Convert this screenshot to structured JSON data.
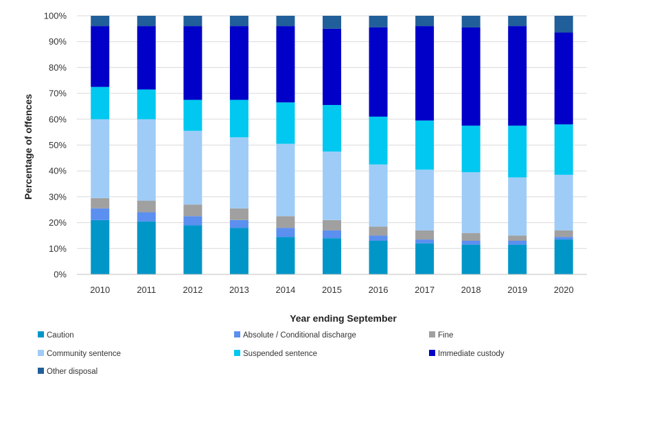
{
  "chart_data": {
    "type": "bar",
    "stacked": true,
    "title": "",
    "xlabel": "Year ending September",
    "ylabel": "Percentage of offences",
    "ylim": [
      0,
      100
    ],
    "yticks": [
      "0%",
      "10%",
      "20%",
      "30%",
      "40%",
      "50%",
      "60%",
      "70%",
      "80%",
      "90%",
      "100%"
    ],
    "categories": [
      "2010",
      "2011",
      "2012",
      "2013",
      "2014",
      "2015",
      "2016",
      "2017",
      "2018",
      "2019",
      "2020"
    ],
    "grid": true,
    "legend_position": "bottom",
    "series": [
      {
        "name": "Caution",
        "color": "#0096C8",
        "values": [
          21,
          20.5,
          19,
          18,
          14.5,
          14,
          13,
          12,
          11.5,
          11.5,
          13.5
        ]
      },
      {
        "name": "Absolute / Conditional discharge",
        "color": "#5B8FF0",
        "values": [
          4.5,
          3.5,
          3.5,
          3,
          3.5,
          3,
          2,
          1.5,
          1.5,
          1.5,
          1
        ]
      },
      {
        "name": "Fine",
        "color": "#A0A0A0",
        "values": [
          4,
          4.5,
          4.5,
          4.5,
          4.5,
          4,
          3.5,
          3.5,
          3,
          2,
          2.5
        ]
      },
      {
        "name": "Community sentence",
        "color": "#9FCCF7",
        "values": [
          30.5,
          31.5,
          28.5,
          27.5,
          28,
          26.5,
          24,
          23.5,
          23.5,
          22.5,
          21.5
        ]
      },
      {
        "name": "Suspended sentence",
        "color": "#00C8F0",
        "values": [
          12.5,
          11.5,
          12,
          14.5,
          16,
          18,
          18.5,
          19,
          18,
          20,
          19.5
        ]
      },
      {
        "name": "Immediate custody",
        "color": "#0000C8",
        "values": [
          23.5,
          24.5,
          28.5,
          28.5,
          29.5,
          29.5,
          34.5,
          36.5,
          38,
          38.5,
          35.5
        ]
      },
      {
        "name": "Other disposal",
        "color": "#215F9A",
        "values": [
          4,
          4,
          4,
          4,
          4,
          5,
          4.5,
          4,
          4.5,
          4,
          6.5
        ]
      }
    ]
  }
}
